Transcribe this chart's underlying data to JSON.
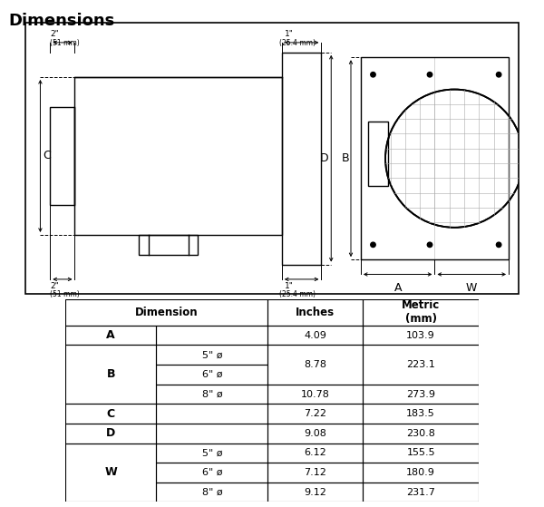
{
  "title": "Dimensions",
  "title_fontsize": 13,
  "bg_color": "#ffffff",
  "table_rows": [
    {
      "letter": "A",
      "sub": "",
      "inches": "4.09",
      "metric": "103.9",
      "group_size": 1,
      "inches_span": 1,
      "metric_span": 1
    },
    {
      "letter": "B",
      "sub": "5\" ø",
      "inches": "8.78",
      "metric": "223.1",
      "group_size": 3,
      "inches_span": 2,
      "metric_span": 2
    },
    {
      "letter": "",
      "sub": "6\" ø",
      "inches": "",
      "metric": "",
      "group_size": 0,
      "inches_span": 0,
      "metric_span": 0
    },
    {
      "letter": "",
      "sub": "8\" ø",
      "inches": "10.78",
      "metric": "273.9",
      "group_size": 0,
      "inches_span": 1,
      "metric_span": 1
    },
    {
      "letter": "C",
      "sub": "",
      "inches": "7.22",
      "metric": "183.5",
      "group_size": 1,
      "inches_span": 1,
      "metric_span": 1
    },
    {
      "letter": "D",
      "sub": "",
      "inches": "9.08",
      "metric": "230.8",
      "group_size": 1,
      "inches_span": 1,
      "metric_span": 1
    },
    {
      "letter": "W",
      "sub": "5\" ø",
      "inches": "6.12",
      "metric": "155.5",
      "group_size": 3,
      "inches_span": 1,
      "metric_span": 1
    },
    {
      "letter": "",
      "sub": "6\" ø",
      "inches": "7.12",
      "metric": "180.9",
      "group_size": 0,
      "inches_span": 1,
      "metric_span": 1
    },
    {
      "letter": "",
      "sub": "8\" ø",
      "inches": "9.12",
      "metric": "231.7",
      "group_size": 0,
      "inches_span": 1,
      "metric_span": 1
    }
  ]
}
